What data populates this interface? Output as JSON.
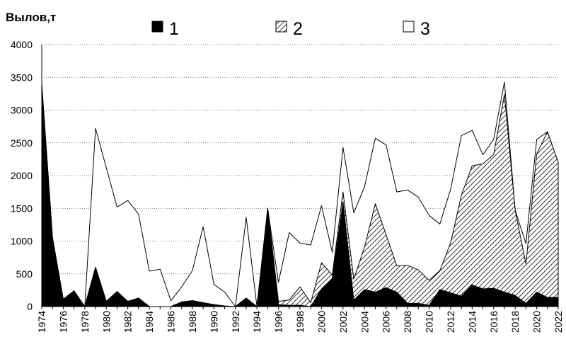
{
  "chart_data": {
    "type": "area",
    "ylabel": "Вылов,т",
    "ylim": [
      0,
      4000
    ],
    "yticks": [
      "0",
      "500",
      "1000",
      "1500",
      "2000",
      "2500",
      "3000",
      "3500",
      "4000"
    ],
    "xticks": [
      "1974",
      "1976",
      "1978",
      "1980",
      "1982",
      "1984",
      "1986",
      "1988",
      "1990",
      "1992",
      "1994",
      "1996",
      "1998",
      "2000",
      "2002",
      "2004",
      "2006",
      "2008",
      "2010",
      "2012",
      "2014",
      "2016",
      "2018",
      "2020",
      "2022"
    ],
    "x": [
      1974,
      1975,
      1976,
      1977,
      1978,
      1979,
      1980,
      1981,
      1982,
      1983,
      1984,
      1985,
      1986,
      1987,
      1988,
      1989,
      1990,
      1991,
      1992,
      1993,
      1994,
      1995,
      1996,
      1997,
      1998,
      1999,
      2000,
      2001,
      2002,
      2003,
      2004,
      2005,
      2006,
      2007,
      2008,
      2009,
      2010,
      2011,
      2012,
      2013,
      2014,
      2015,
      2016,
      2017,
      2018,
      2019,
      2020,
      2021,
      2022
    ],
    "grid": true,
    "legend_position": "top",
    "series": [
      {
        "name": "1",
        "pattern": "solid",
        "color": "#000000",
        "values": [
          3400,
          1050,
          110,
          240,
          0,
          600,
          80,
          230,
          80,
          130,
          0,
          0,
          0,
          70,
          90,
          60,
          30,
          10,
          0,
          130,
          0,
          1500,
          30,
          20,
          20,
          0,
          270,
          430,
          1600,
          100,
          260,
          220,
          290,
          220,
          50,
          50,
          20,
          260,
          210,
          160,
          330,
          270,
          280,
          220,
          170,
          50,
          220,
          140,
          140
        ]
      },
      {
        "name": "2",
        "pattern": "hatched",
        "color": "#000000",
        "values": [
          0,
          0,
          0,
          0,
          0,
          0,
          0,
          0,
          0,
          0,
          0,
          0,
          0,
          0,
          0,
          0,
          0,
          0,
          0,
          0,
          0,
          0,
          50,
          80,
          280,
          60,
          400,
          50,
          150,
          320,
          650,
          1350,
          810,
          400,
          580,
          510,
          380,
          290,
          760,
          1540,
          1820,
          1910,
          2040,
          3020,
          1300,
          600,
          2110,
          2530,
          2060
        ]
      },
      {
        "name": "3",
        "pattern": "white",
        "color": "#ffffff",
        "values": [
          0,
          0,
          0,
          0,
          0,
          2120,
          2040,
          1290,
          1540,
          1280,
          540,
          570,
          90,
          230,
          460,
          1160,
          310,
          210,
          0,
          1230,
          0,
          0,
          290,
          1030,
          670,
          880,
          870,
          350,
          680,
          1010,
          920,
          1000,
          1370,
          1130,
          1150,
          1110,
          990,
          710,
          820,
          910,
          540,
          140,
          230,
          190,
          0,
          310,
          220,
          0,
          0
        ]
      }
    ]
  }
}
